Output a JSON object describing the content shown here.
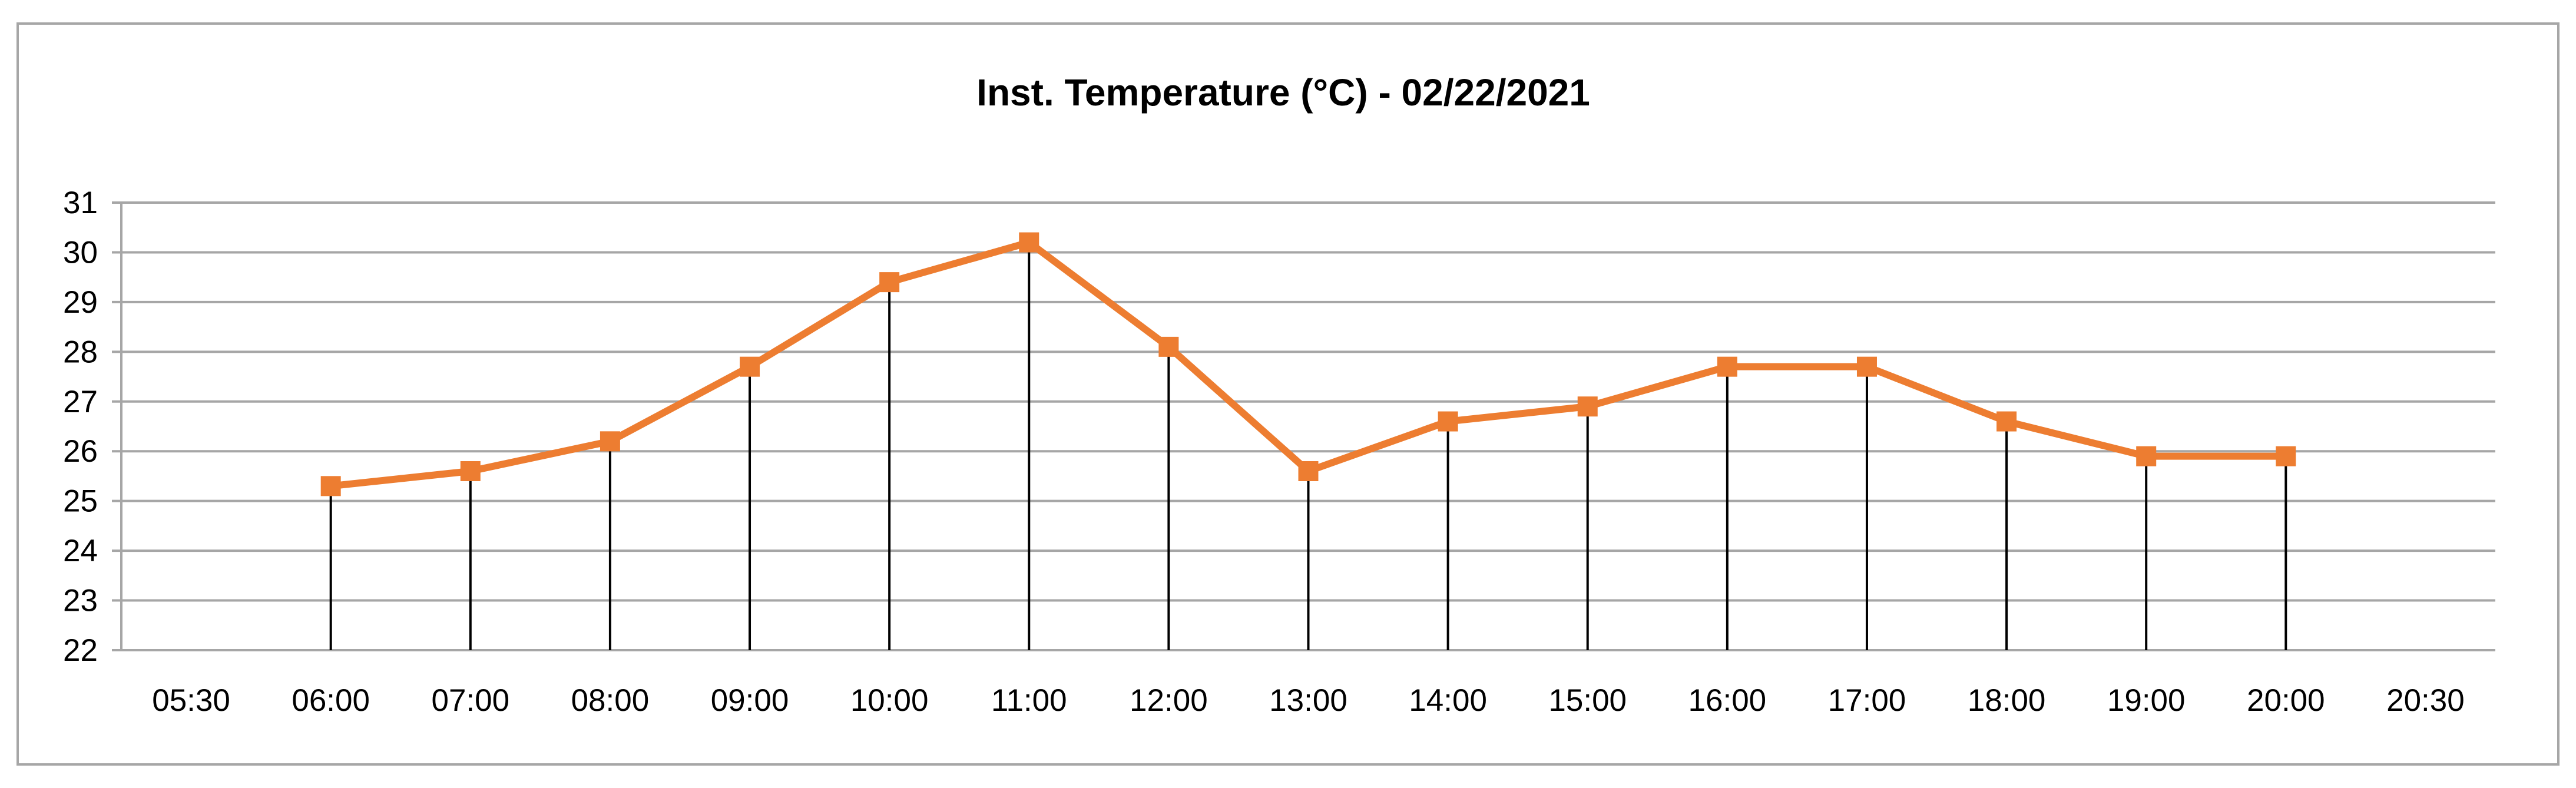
{
  "chart_data": {
    "type": "line",
    "title": "Inst. Temperature (°C) - 02/22/2021",
    "xlabel": "",
    "ylabel": "",
    "categories": [
      "05:30",
      "06:00",
      "07:00",
      "08:00",
      "09:00",
      "10:00",
      "11:00",
      "12:00",
      "13:00",
      "14:00",
      "15:00",
      "16:00",
      "17:00",
      "18:00",
      "19:00",
      "20:00",
      "20:30"
    ],
    "series": [
      {
        "values": [
          null,
          25.3,
          25.6,
          26.2,
          27.7,
          29.4,
          30.2,
          28.1,
          25.6,
          26.6,
          26.9,
          27.7,
          27.7,
          26.6,
          25.9,
          25.9,
          null
        ],
        "color": "#ed7d31",
        "marker": "square",
        "drop_lines": true
      }
    ],
    "ylim": [
      22,
      31
    ],
    "yticks": [
      22,
      23,
      24,
      25,
      26,
      27,
      28,
      29,
      30,
      31
    ],
    "grid": true,
    "legend": "none",
    "colors": {
      "line": "#ed7d31",
      "grid": "#a6a6a6",
      "drop_line": "#000000",
      "frame": "#a6a6a6"
    }
  }
}
